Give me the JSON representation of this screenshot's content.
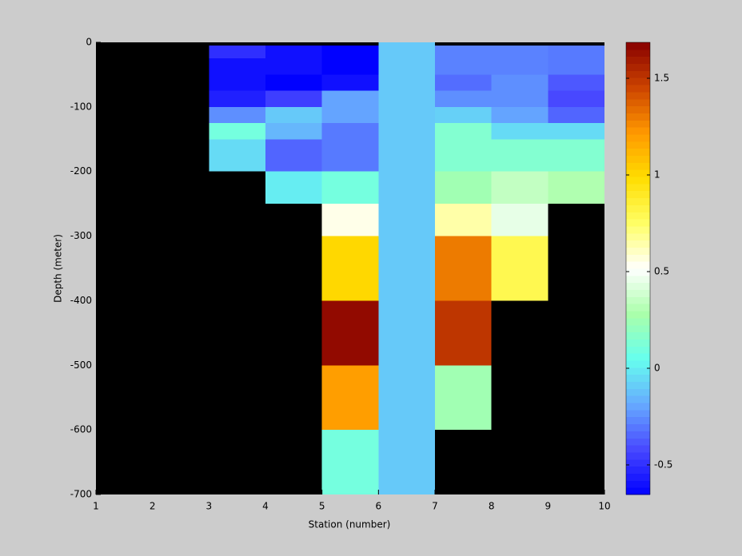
{
  "chart_data": {
    "type": "heatmap",
    "xlabel": "Station (number)",
    "ylabel": "Depth (meter)",
    "x_edges": [
      1,
      2,
      3,
      4,
      5,
      6,
      7,
      8,
      9,
      10
    ],
    "y_edges": [
      0,
      -5,
      -25,
      -50,
      -75,
      -100,
      -125,
      -150,
      -200,
      -250,
      -300,
      -400,
      -500,
      -600,
      -700
    ],
    "values": [
      [
        null,
        null,
        null,
        null,
        null,
        -0.1,
        null,
        null,
        null
      ],
      [
        null,
        null,
        -0.5,
        -0.6,
        -0.65,
        -0.1,
        -0.28,
        -0.28,
        -0.3
      ],
      [
        null,
        null,
        -0.6,
        -0.6,
        -0.65,
        -0.1,
        -0.28,
        -0.28,
        -0.3
      ],
      [
        null,
        null,
        -0.6,
        -0.65,
        -0.6,
        -0.1,
        -0.33,
        -0.25,
        -0.38
      ],
      [
        null,
        null,
        -0.55,
        -0.45,
        -0.2,
        -0.1,
        -0.25,
        -0.25,
        -0.42
      ],
      [
        null,
        null,
        -0.25,
        -0.1,
        -0.2,
        -0.1,
        -0.08,
        -0.2,
        -0.35
      ],
      [
        null,
        null,
        0.1,
        -0.15,
        -0.3,
        -0.1,
        0.15,
        -0.05,
        -0.05
      ],
      [
        null,
        null,
        -0.05,
        -0.35,
        -0.3,
        -0.1,
        0.15,
        0.15,
        0.15
      ],
      [
        null,
        null,
        null,
        0.0,
        0.1,
        -0.1,
        0.25,
        0.35,
        0.3
      ],
      [
        null,
        null,
        null,
        null,
        0.55,
        -0.1,
        0.65,
        0.45,
        null
      ],
      [
        null,
        null,
        null,
        null,
        1.0,
        -0.1,
        1.3,
        0.8,
        null
      ],
      [
        null,
        null,
        null,
        null,
        1.65,
        -0.1,
        1.5,
        null,
        null
      ],
      [
        null,
        null,
        null,
        null,
        1.2,
        -0.1,
        0.25,
        null,
        null
      ],
      [
        null,
        null,
        null,
        null,
        0.1,
        -0.1,
        null,
        null,
        null
      ]
    ],
    "xlim": [
      1,
      10
    ],
    "xticks": [
      1,
      2,
      3,
      4,
      5,
      6,
      7,
      8,
      9,
      10
    ],
    "ylim": [
      -700,
      0
    ],
    "yticks": [
      0,
      -100,
      -200,
      -300,
      -400,
      -500,
      -600,
      -700
    ],
    "clim": [
      -0.653,
      1.686
    ],
    "cticks": [
      -0.5,
      0,
      0.5,
      1,
      1.5
    ],
    "colormap": [
      "#0000ff",
      "#4848ff",
      "#66aaff",
      "#66ffee",
      "#aaffaa",
      "#ffffff",
      "#ffff66",
      "#ffdd00",
      "#ff9900",
      "#cc4400",
      "#880000"
    ],
    "colormap_levels": 64,
    "missing_color": "#000000"
  }
}
